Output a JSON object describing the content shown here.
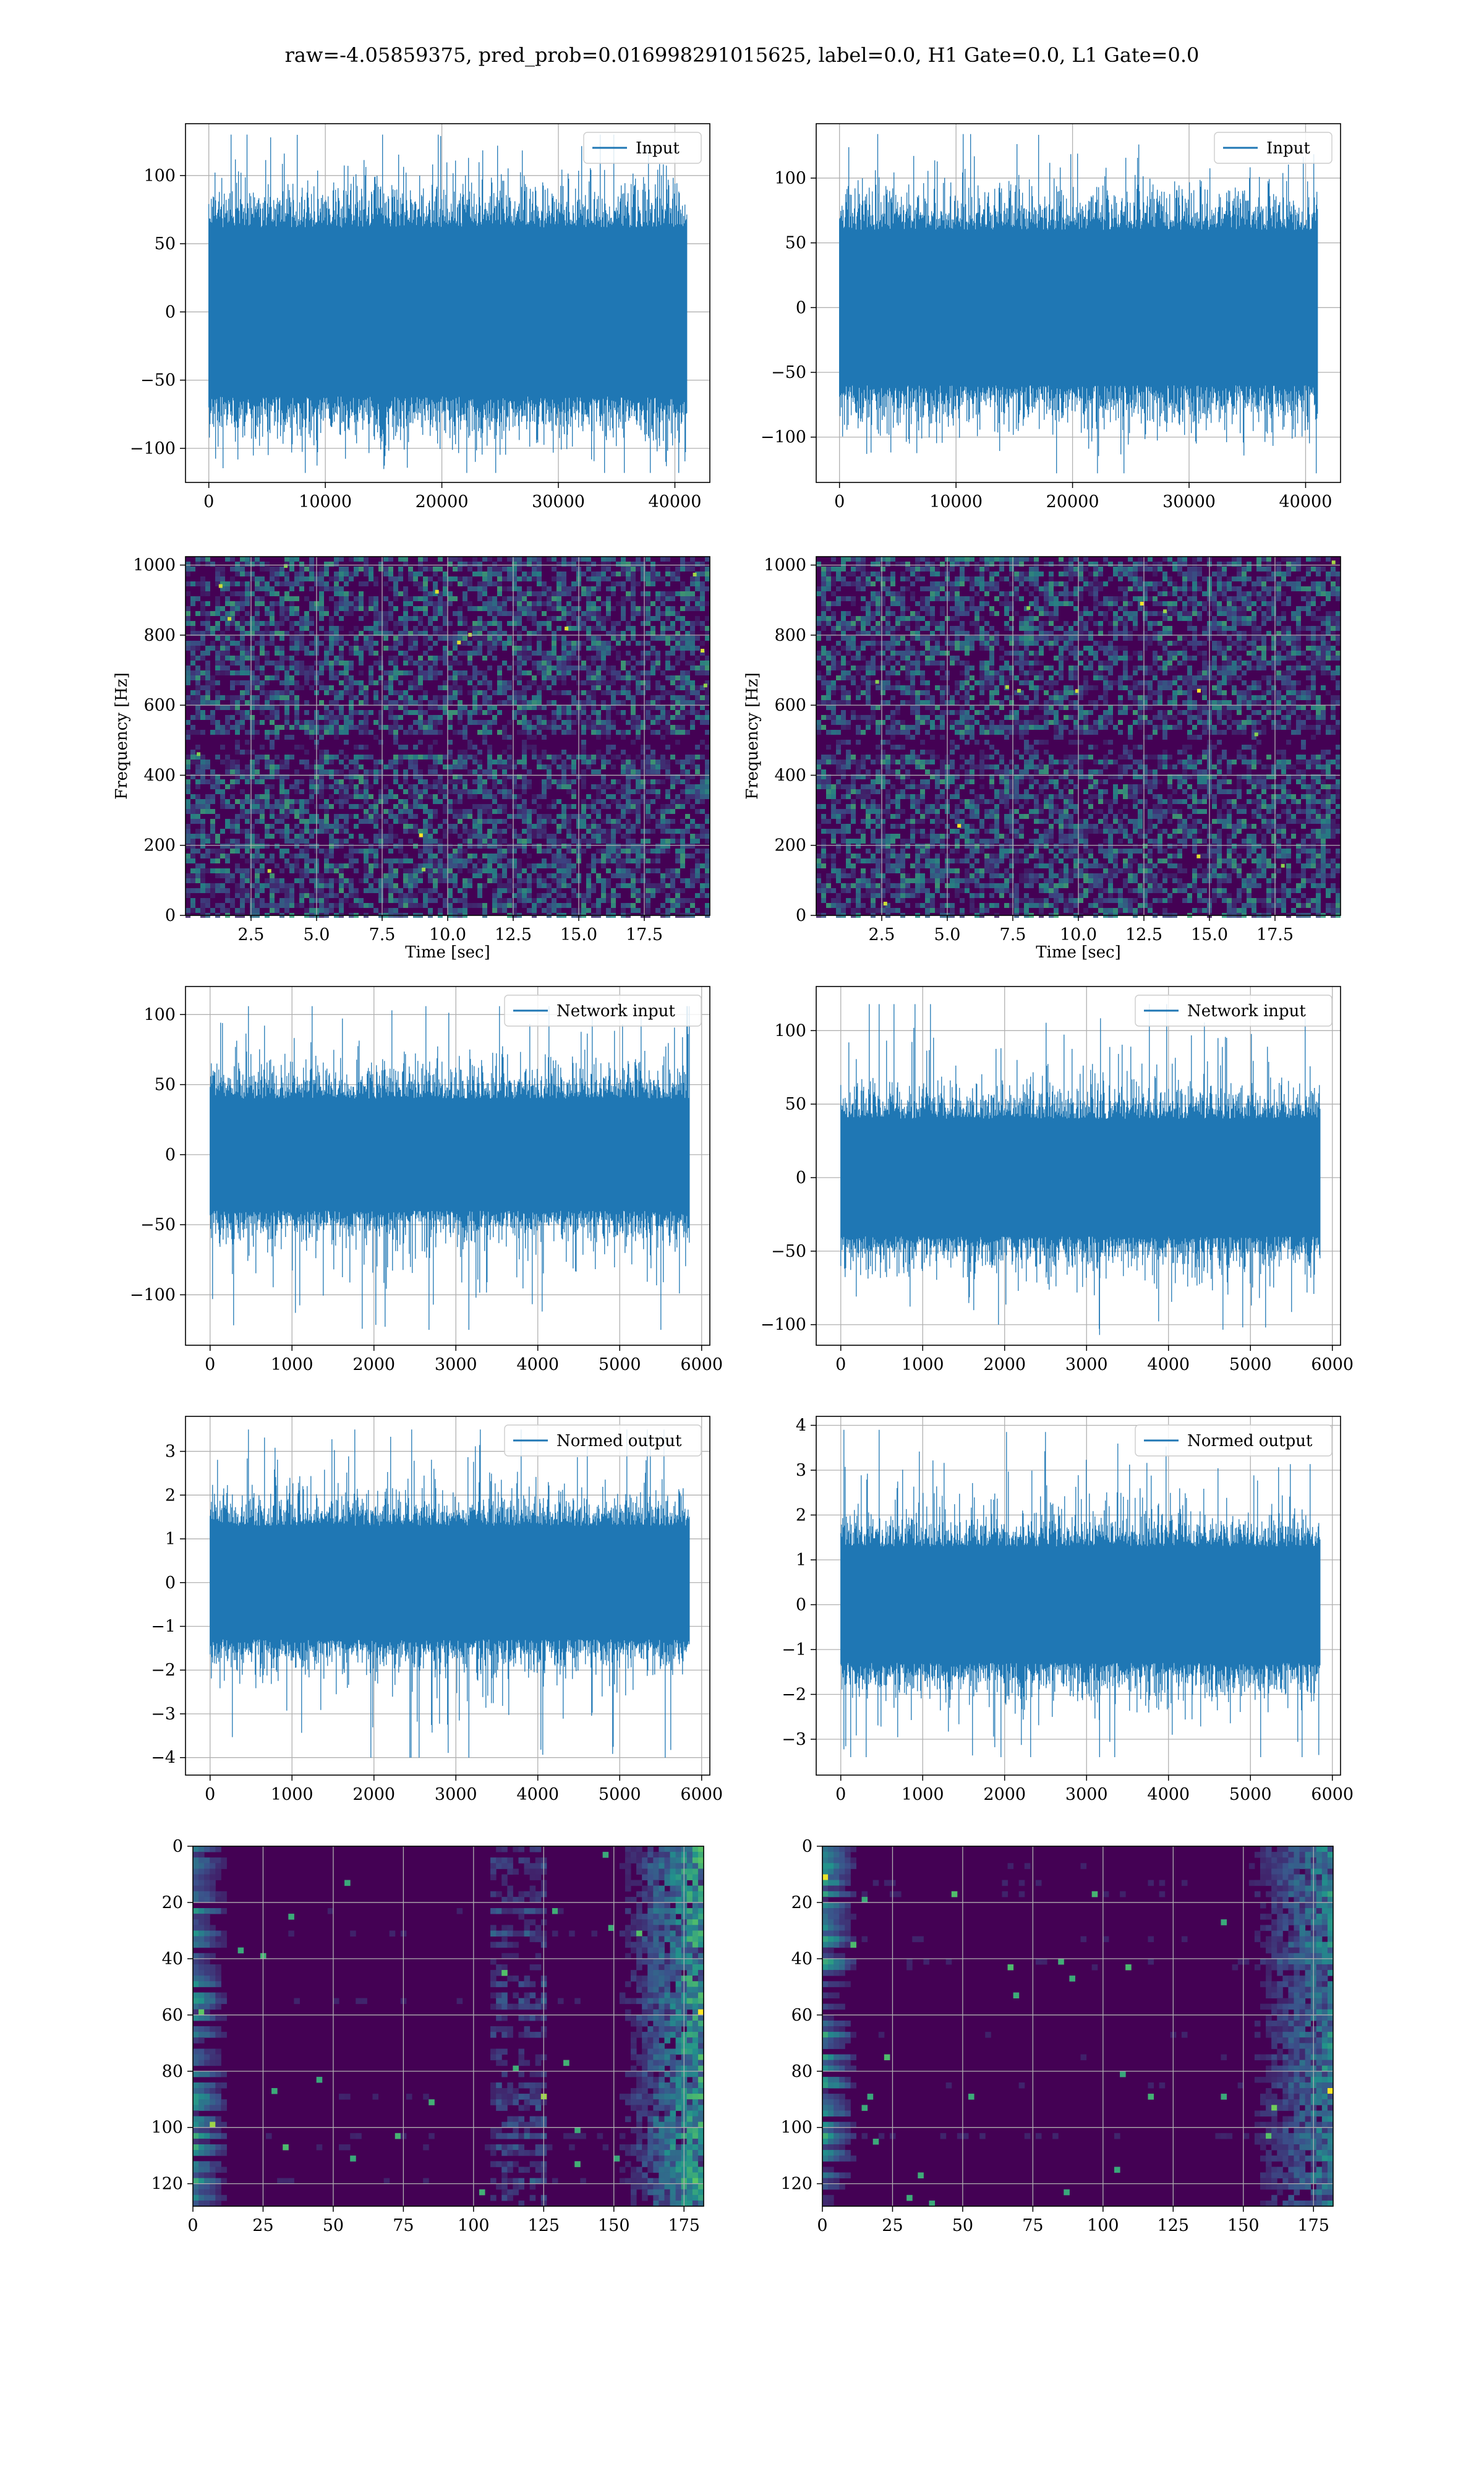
{
  "figure_title": "raw=-4.05859375, pred_prob=0.016998291015625, label=0.0, H1 Gate=0.0, L1 Gate=0.0",
  "colors": {
    "line": "#1f77b4",
    "grid": "#b0b0b0",
    "heatmap_low": "#440154",
    "heatmap_mid": "#31688e",
    "heatmap_high": "#35b779",
    "heatmap_peak": "#fde725"
  },
  "chart_data": [
    {
      "id": "input-left",
      "type": "line",
      "legend": "Input",
      "legend_position": "top-right",
      "grid": true,
      "xlim": [
        -2000,
        43000
      ],
      "ylim": [
        -125,
        138
      ],
      "xticks": [
        0,
        10000,
        20000,
        30000,
        40000
      ],
      "yticks": [
        -100,
        -50,
        0,
        50,
        100
      ],
      "x_range": [
        0,
        41000
      ],
      "envelope": {
        "core": 62,
        "spike_max": 130,
        "spike_min": -118
      },
      "series": [
        {
          "values_summary": "noise-like signal, 41000 samples, core amplitude about ±62, peaks 130 / -118"
        }
      ]
    },
    {
      "id": "input-right",
      "type": "line",
      "legend": "Input",
      "legend_position": "top-right",
      "grid": true,
      "xlim": [
        -2000,
        43000
      ],
      "ylim": [
        -135,
        142
      ],
      "xticks": [
        0,
        10000,
        20000,
        30000,
        40000
      ],
      "yticks": [
        -100,
        -50,
        0,
        50,
        100
      ],
      "x_range": [
        0,
        41000
      ],
      "envelope": {
        "core": 60,
        "spike_max": 134,
        "spike_min": -128
      },
      "series": [
        {
          "values_summary": "noise-like signal, 41000 samples, core amplitude about ±60, peaks 134 / -128"
        }
      ]
    },
    {
      "id": "spectrogram-left",
      "type": "heatmap",
      "xlabel": "Time [sec]",
      "ylabel": "Frequency [Hz]",
      "grid": true,
      "xlim": [
        0,
        20
      ],
      "ylim": [
        0,
        1024
      ],
      "xticks": [
        2.5,
        5.0,
        7.5,
        10.0,
        12.5,
        15.0,
        17.5
      ],
      "yticks": [
        0,
        200,
        400,
        600,
        800,
        1000
      ],
      "dark_band_hz": [
        460,
        520
      ]
    },
    {
      "id": "spectrogram-right",
      "type": "heatmap",
      "xlabel": "Time [sec]",
      "ylabel": "Frequency [Hz]",
      "grid": true,
      "xlim": [
        0,
        20
      ],
      "ylim": [
        0,
        1024
      ],
      "xticks": [
        2.5,
        5.0,
        7.5,
        10.0,
        12.5,
        15.0,
        17.5
      ],
      "yticks": [
        0,
        200,
        400,
        600,
        800,
        1000
      ],
      "dark_band_hz": [
        460,
        520
      ]
    },
    {
      "id": "network-input-left",
      "type": "line",
      "legend": "Network input",
      "legend_position": "top-right",
      "grid": true,
      "xlim": [
        -300,
        6100
      ],
      "ylim": [
        -136,
        120
      ],
      "xticks": [
        0,
        1000,
        2000,
        3000,
        4000,
        5000,
        6000
      ],
      "yticks": [
        -100,
        -50,
        0,
        50,
        100
      ],
      "x_range": [
        0,
        5850
      ],
      "envelope": {
        "core": 40,
        "spike_max": 106,
        "spike_min": -125
      },
      "series": [
        {
          "values_summary": "noise-like signal, 5850 samples, core amplitude about ±40, peaks 106 / -125"
        }
      ]
    },
    {
      "id": "network-input-right",
      "type": "line",
      "legend": "Network input",
      "legend_position": "top-right",
      "grid": true,
      "xlim": [
        -300,
        6100
      ],
      "ylim": [
        -114,
        130
      ],
      "xticks": [
        0,
        1000,
        2000,
        3000,
        4000,
        5000,
        6000
      ],
      "yticks": [
        -100,
        -50,
        0,
        50,
        100
      ],
      "x_range": [
        0,
        5850
      ],
      "envelope": {
        "core": 40,
        "spike_max": 118,
        "spike_min": -107
      },
      "series": [
        {
          "values_summary": "noise-like signal, 5850 samples, core amplitude about ±40, peaks 118 / -107"
        }
      ]
    },
    {
      "id": "normed-output-left",
      "type": "line",
      "legend": "Normed output",
      "legend_position": "top-right",
      "grid": true,
      "xlim": [
        -300,
        6100
      ],
      "ylim": [
        -4.4,
        3.8
      ],
      "xticks": [
        0,
        1000,
        2000,
        3000,
        4000,
        5000,
        6000
      ],
      "yticks": [
        -4,
        -3,
        -2,
        -1,
        0,
        1,
        2,
        3
      ],
      "x_range": [
        0,
        5850
      ],
      "envelope": {
        "core": 1.3,
        "spike_max": 3.5,
        "spike_min": -4.0
      },
      "series": [
        {
          "values_summary": "normalized signal, core amplitude about ±1.3, peaks 3.5 / -4.0"
        }
      ]
    },
    {
      "id": "normed-output-right",
      "type": "line",
      "legend": "Normed output",
      "legend_position": "top-right",
      "grid": true,
      "xlim": [
        -300,
        6100
      ],
      "ylim": [
        -3.8,
        4.2
      ],
      "xticks": [
        0,
        1000,
        2000,
        3000,
        4000,
        5000,
        6000
      ],
      "yticks": [
        -3,
        -2,
        -1,
        0,
        1,
        2,
        3,
        4
      ],
      "x_range": [
        0,
        5850
      ],
      "envelope": {
        "core": 1.3,
        "spike_max": 3.9,
        "spike_min": -3.4
      },
      "series": [
        {
          "values_summary": "normalized signal, core amplitude about ±1.3, peaks 3.9 / -3.4"
        }
      ]
    },
    {
      "id": "features-left",
      "type": "heatmap",
      "grid": true,
      "xlim": [
        0,
        182
      ],
      "ylim": [
        128,
        0
      ],
      "xticks": [
        0,
        25,
        50,
        75,
        100,
        125,
        150,
        175
      ],
      "yticks": [
        0,
        20,
        40,
        60,
        80,
        100,
        120
      ],
      "rows": 128,
      "cols": 182
    },
    {
      "id": "features-right",
      "type": "heatmap",
      "grid": true,
      "xlim": [
        0,
        182
      ],
      "ylim": [
        128,
        0
      ],
      "xticks": [
        0,
        25,
        50,
        75,
        100,
        125,
        150,
        175
      ],
      "yticks": [
        0,
        20,
        40,
        60,
        80,
        100,
        120
      ],
      "rows": 128,
      "cols": 182
    }
  ]
}
